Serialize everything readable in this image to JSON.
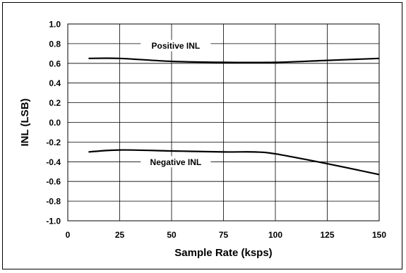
{
  "chart_data": {
    "type": "line",
    "xlabel": "Sample Rate (ksps)",
    "ylabel": "INL (LSB)",
    "xlim": [
      0,
      150
    ],
    "ylim": [
      -1.0,
      1.0
    ],
    "x_ticks": [
      0,
      25,
      50,
      75,
      100,
      125,
      150
    ],
    "x_tick_labels": [
      "0",
      "25",
      "50",
      "75",
      "100",
      "125",
      "150"
    ],
    "y_ticks": [
      1.0,
      0.8,
      0.6,
      0.4,
      0.2,
      0.0,
      -0.2,
      -0.4,
      -0.6,
      -0.8,
      -1.0
    ],
    "y_tick_labels": [
      "1.0",
      "0.8",
      "0.6",
      "0.4",
      "0.2",
      "0.0",
      "-0.2",
      "-0.4",
      "-0.6",
      "-0.8",
      "-1.0"
    ],
    "grid": true,
    "series": [
      {
        "name": "Positive INL",
        "x": [
          10,
          25,
          50,
          75,
          100,
          125,
          150
        ],
        "y": [
          0.65,
          0.65,
          0.62,
          0.61,
          0.61,
          0.63,
          0.65
        ]
      },
      {
        "name": "Negative INL",
        "x": [
          10,
          25,
          50,
          75,
          90,
          100,
          125,
          150
        ],
        "y": [
          -0.3,
          -0.28,
          -0.29,
          -0.3,
          -0.3,
          -0.32,
          -0.42,
          -0.53
        ]
      }
    ],
    "annotations": [
      "Positive INL",
      "Negative INL"
    ]
  }
}
